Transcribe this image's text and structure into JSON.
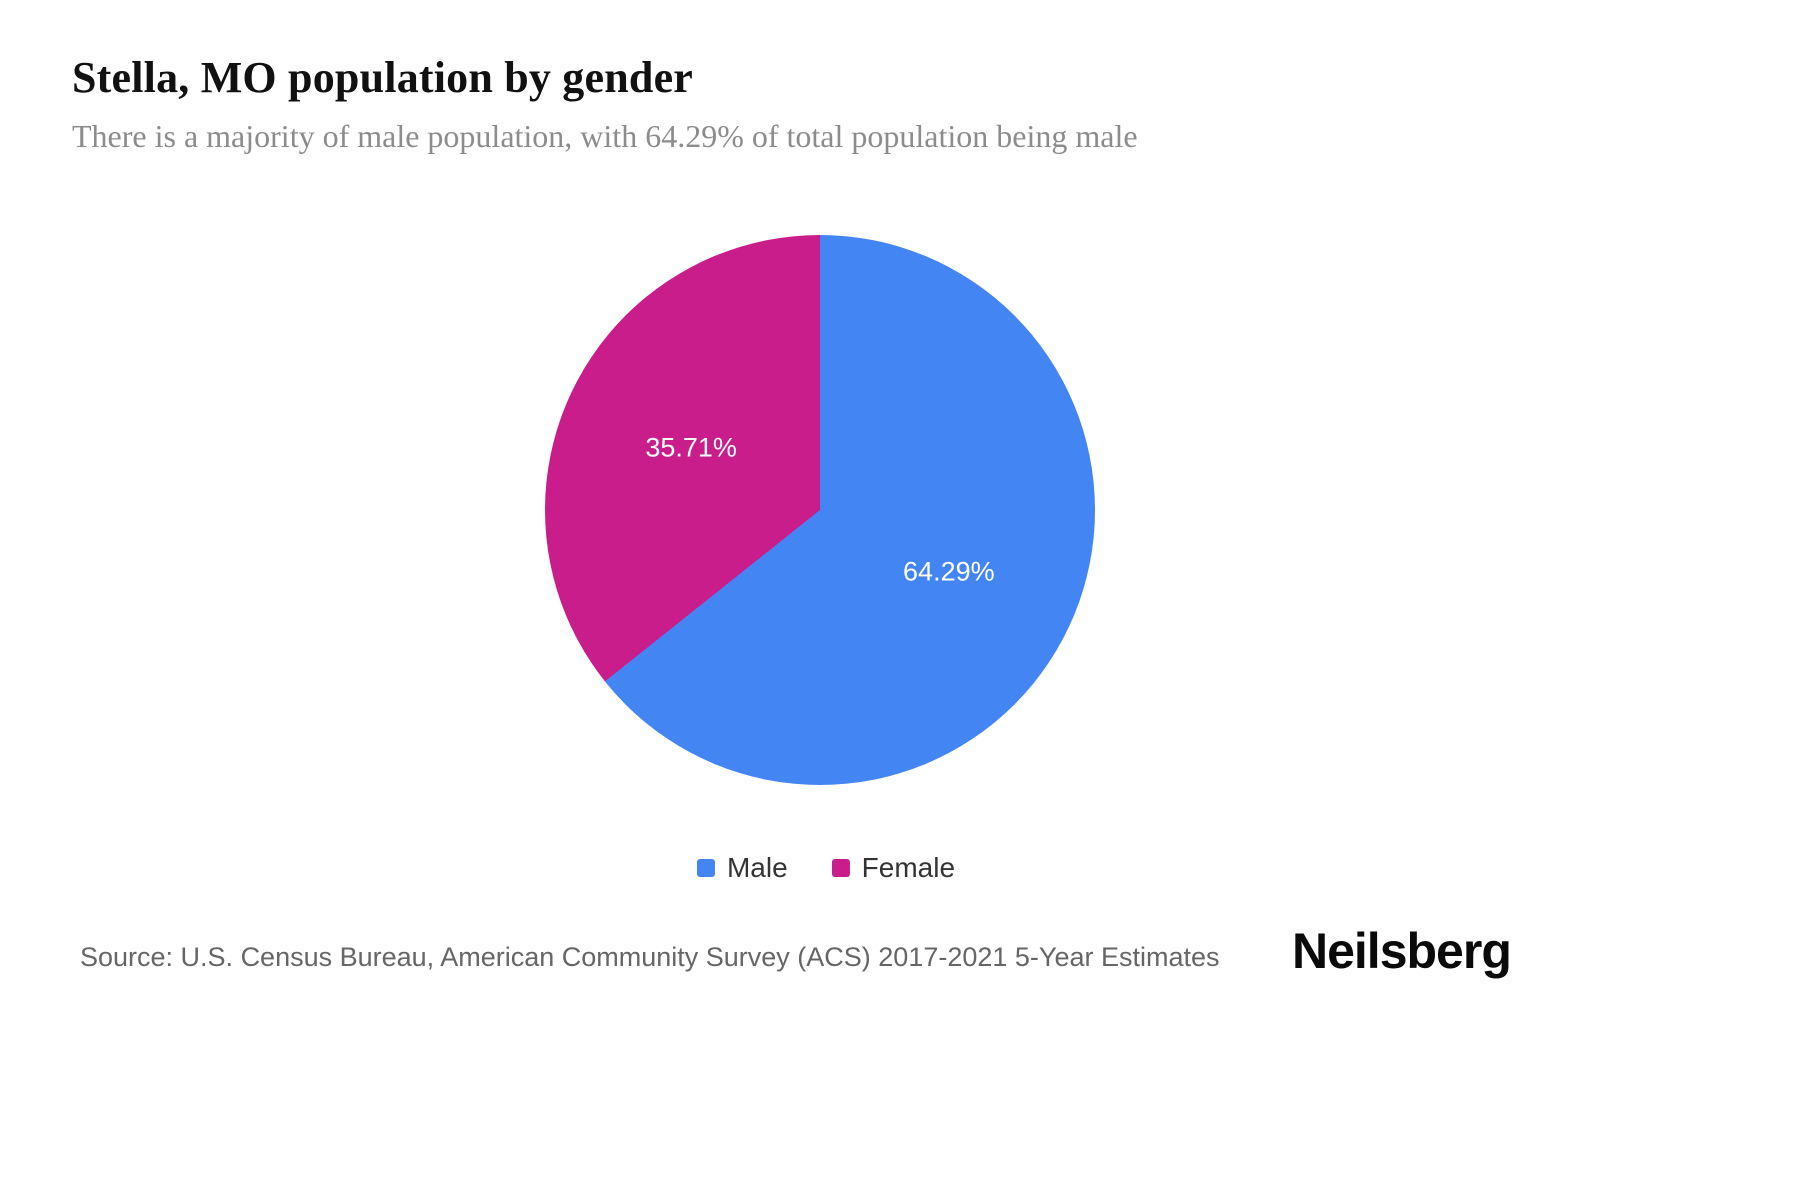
{
  "page": {
    "title": "Stella, MO population by gender",
    "subtitle": "There is a majority of male population, with 64.29% of total population being male",
    "source": "Source: U.S. Census Bureau, American Community Survey (ACS) 2017-2021 5-Year Estimates",
    "brand": "Neilsberg"
  },
  "chart_data": {
    "type": "pie",
    "title": "Stella, MO population by gender",
    "series": [
      {
        "name": "Male",
        "value": 64.29,
        "label": "64.29%",
        "color": "#4485f4"
      },
      {
        "name": "Female",
        "value": 35.71,
        "label": "35.71%",
        "color": "#ca1d8c"
      }
    ],
    "start_angle": "top",
    "direction": "clockwise",
    "legend_position": "bottom",
    "label_color": "#ffffff"
  },
  "legend": {
    "items": [
      {
        "label": "Male",
        "color": "#4485f4"
      },
      {
        "label": "Female",
        "color": "#ca1d8c"
      }
    ]
  }
}
